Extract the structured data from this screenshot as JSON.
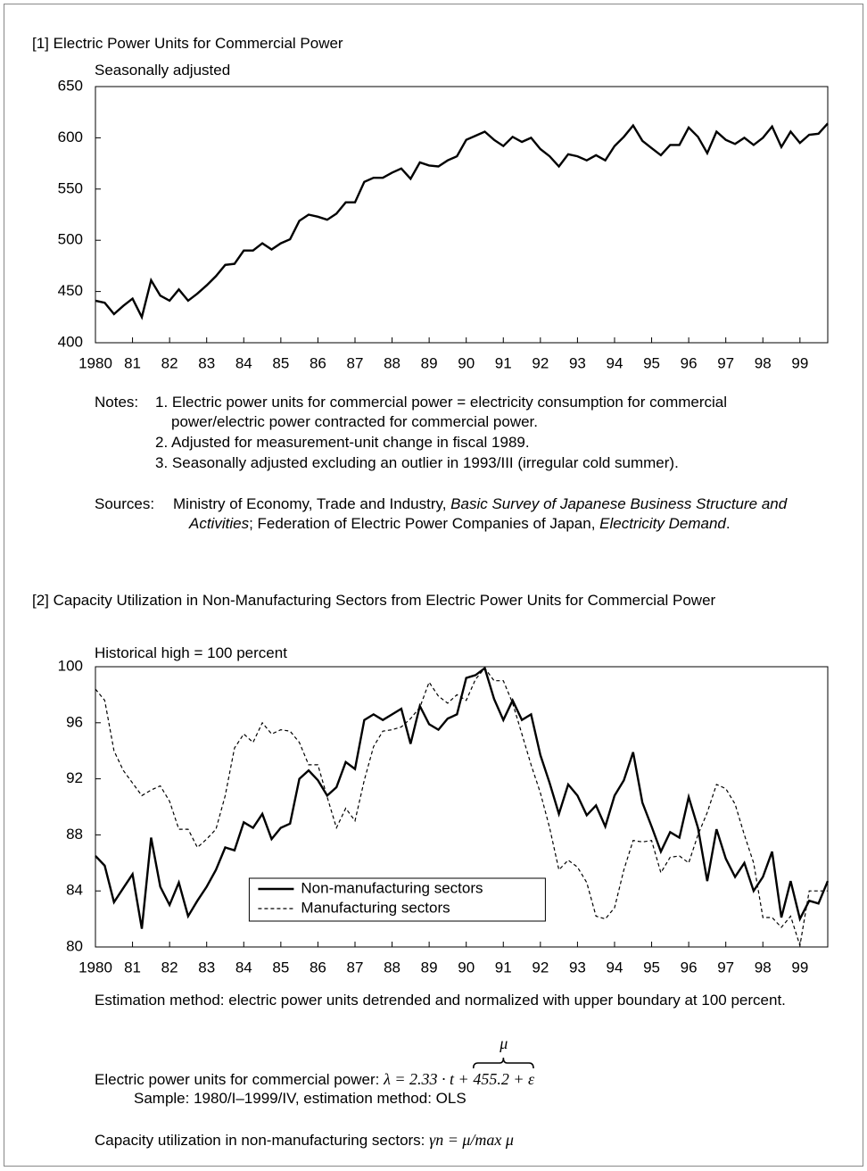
{
  "chart_data": [
    {
      "type": "line",
      "title": "[1] Electric Power Units for Commercial Power",
      "subtitle": "Seasonally adjusted",
      "categories": [
        "1980",
        null,
        null,
        null,
        "81",
        null,
        null,
        null,
        "82",
        null,
        null,
        null,
        "83",
        null,
        null,
        null,
        "84",
        null,
        null,
        null,
        "85",
        null,
        null,
        null,
        "86",
        null,
        null,
        null,
        "87",
        null,
        null,
        null,
        "88",
        null,
        null,
        null,
        "89",
        null,
        null,
        null,
        "90",
        null,
        null,
        null,
        "91",
        null,
        null,
        null,
        "92",
        null,
        null,
        null,
        "93",
        null,
        null,
        null,
        "94",
        null,
        null,
        null,
        "95",
        null,
        null,
        null,
        "96",
        null,
        null,
        null,
        "97",
        null,
        null,
        null,
        "98",
        null,
        null,
        null,
        "99",
        null,
        null,
        null
      ],
      "series": [
        {
          "color": "#000000",
          "dash": false,
          "values": [
            441,
            439,
            428,
            436,
            443,
            425,
            461,
            446,
            441,
            452,
            441,
            448,
            456,
            465,
            476,
            477,
            490,
            490,
            497,
            491,
            497,
            501,
            519,
            525,
            523,
            520,
            526,
            537,
            537,
            557,
            561,
            561,
            566,
            570,
            560,
            576,
            573,
            572,
            578,
            582,
            598,
            602,
            606,
            598,
            592,
            601,
            596,
            600,
            589,
            582,
            572,
            584,
            582,
            578,
            583,
            578,
            592,
            601,
            612,
            597,
            590,
            583,
            593,
            593,
            610,
            601,
            585,
            606,
            598,
            594,
            600,
            593,
            600,
            611,
            591,
            606,
            595,
            603,
            604,
            614
          ]
        }
      ],
      "ylim": [
        400,
        650
      ],
      "yticks": [
        400,
        450,
        500,
        550,
        600,
        650
      ],
      "grid": false,
      "notes_label": "Notes:",
      "notes": [
        "1. Electric power units for commercial power = electricity consumption for commercial power/electric power contracted for commercial power.",
        "2. Adjusted for measurement-unit change in fiscal 1989.",
        "3. Seasonally adjusted excluding an outlier in 1993/III (irregular cold summer)."
      ],
      "sources_label": "Sources:",
      "sources": [
        {
          "text": "Ministry of Economy, Trade and Industry, ",
          "italic": false
        },
        {
          "text": "Basic Survey of Japanese Business Structure and Activities",
          "italic": true
        },
        {
          "text": "; Federation of Electric Power Companies of Japan, ",
          "italic": false
        },
        {
          "text": "Electricity Demand",
          "italic": true
        },
        {
          "text": ".",
          "italic": false
        }
      ]
    },
    {
      "type": "line",
      "title": "[2] Capacity Utilization in Non-Manufacturing Sectors from Electric Power Units for Commercial Power",
      "subtitle": "Historical high = 100 percent",
      "categories": [
        "1980",
        null,
        null,
        null,
        "81",
        null,
        null,
        null,
        "82",
        null,
        null,
        null,
        "83",
        null,
        null,
        null,
        "84",
        null,
        null,
        null,
        "85",
        null,
        null,
        null,
        "86",
        null,
        null,
        null,
        "87",
        null,
        null,
        null,
        "88",
        null,
        null,
        null,
        "89",
        null,
        null,
        null,
        "90",
        null,
        null,
        null,
        "91",
        null,
        null,
        null,
        "92",
        null,
        null,
        null,
        "93",
        null,
        null,
        null,
        "94",
        null,
        null,
        null,
        "95",
        null,
        null,
        null,
        "96",
        null,
        null,
        null,
        "97",
        null,
        null,
        null,
        "98",
        null,
        null,
        null,
        "99",
        null,
        null,
        null
      ],
      "series": [
        {
          "name": "Non-manufacturing sectors",
          "color": "#000000",
          "dash": false,
          "values": [
            86.5,
            85.8,
            83.2,
            84.2,
            85.2,
            81.3,
            87.8,
            84.3,
            83.0,
            84.6,
            82.2,
            83.3,
            84.3,
            85.5,
            87.1,
            86.9,
            88.9,
            88.5,
            89.5,
            87.7,
            88.5,
            88.8,
            92.0,
            92.6,
            91.9,
            90.8,
            91.4,
            93.2,
            92.7,
            96.2,
            96.6,
            96.2,
            96.6,
            97.0,
            94.5,
            97.2,
            95.9,
            95.5,
            96.3,
            96.6,
            99.2,
            99.4,
            99.9,
            97.7,
            96.2,
            97.6,
            96.2,
            96.6,
            93.7,
            91.7,
            89.5,
            91.6,
            90.8,
            89.4,
            90.1,
            88.6,
            90.8,
            91.9,
            93.9,
            90.3,
            88.6,
            86.8,
            88.2,
            87.8,
            90.7,
            88.5,
            84.7,
            88.4,
            86.3,
            85.0,
            86.0,
            84.0,
            85.0,
            86.8,
            82.1,
            84.7,
            82.0,
            83.3,
            83.1,
            84.7
          ]
        },
        {
          "name": "Manufacturing sectors",
          "color": "#000000",
          "dash": true,
          "values": [
            98.4,
            97.6,
            94.0,
            92.6,
            91.7,
            90.8,
            91.2,
            91.5,
            90.4,
            88.4,
            88.4,
            87.1,
            87.7,
            88.4,
            90.8,
            94.2,
            95.2,
            94.6,
            96.0,
            95.2,
            95.5,
            95.4,
            94.6,
            93.0,
            93.0,
            90.7,
            88.5,
            89.9,
            89.0,
            91.9,
            94.3,
            95.4,
            95.5,
            95.7,
            96.3,
            97.1,
            98.9,
            97.9,
            97.4,
            98.0,
            97.6,
            99.1,
            99.9,
            99.0,
            99.0,
            97.4,
            95.2,
            93.0,
            91.0,
            88.5,
            85.5,
            86.2,
            85.7,
            84.6,
            82.2,
            82.0,
            82.8,
            85.5,
            87.6,
            87.5,
            87.6,
            85.3,
            86.4,
            86.5,
            86.0,
            88.0,
            89.6,
            91.6,
            91.3,
            90.2,
            88.0,
            86.0,
            82.1,
            82.1,
            81.4,
            82.2,
            80.1,
            84.0,
            84.0,
            84.0
          ]
        }
      ],
      "ylim": [
        80,
        100
      ],
      "yticks": [
        80,
        84,
        88,
        92,
        96,
        100
      ],
      "grid": false,
      "legend": "lower center",
      "estimation_method": "Estimation method: electric power units detrended and normalized with upper boundary at 100 percent.",
      "formula": {
        "label": "Electric power units for commercial power:",
        "expression": "λ = 2.33 · t +",
        "braced": "455.2 + ε",
        "brace_label": "μ"
      },
      "sample": "Sample: 1980/I–1999/IV, estimation method: OLS",
      "utilization": {
        "label": "Capacity utilization in non-manufacturing sectors:",
        "expression": "γn = μ/max μ"
      }
    }
  ]
}
